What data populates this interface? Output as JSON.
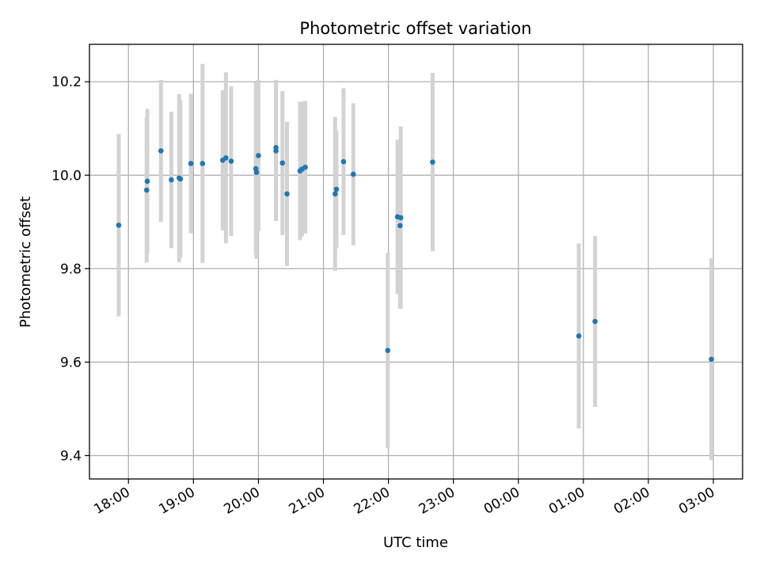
{
  "chart_data": {
    "type": "scatter",
    "title": "Photometric offset variation",
    "xlabel": "UTC time",
    "ylabel": "Photometric offset",
    "x_unit": "hours of UTC day (values above 24 are after midnight)",
    "xlim": [
      17.4,
      27.45
    ],
    "ylim": [
      9.35,
      10.28
    ],
    "x_ticks": [
      {
        "value": 18,
        "label": "18:00"
      },
      {
        "value": 19,
        "label": "19:00"
      },
      {
        "value": 20,
        "label": "20:00"
      },
      {
        "value": 21,
        "label": "21:00"
      },
      {
        "value": 22,
        "label": "22:00"
      },
      {
        "value": 23,
        "label": "23:00"
      },
      {
        "value": 24,
        "label": "00:00"
      },
      {
        "value": 25,
        "label": "01:00"
      },
      {
        "value": 26,
        "label": "02:00"
      },
      {
        "value": 27,
        "label": "03:00"
      }
    ],
    "y_ticks": [
      {
        "value": 9.4,
        "label": "9.4"
      },
      {
        "value": 9.6,
        "label": "9.6"
      },
      {
        "value": 9.8,
        "label": "9.8"
      },
      {
        "value": 10.0,
        "label": "10.0"
      },
      {
        "value": 10.2,
        "label": "10.2"
      }
    ],
    "grid": true,
    "point_color": "#1f77b4",
    "errorbar_color": "#d3d3d3",
    "series": [
      {
        "points": [
          {
            "x": 17.85,
            "y": 9.893,
            "err": 0.195
          },
          {
            "x": 18.28,
            "y": 9.968,
            "err": 0.155
          },
          {
            "x": 18.29,
            "y": 9.987,
            "err": 0.155
          },
          {
            "x": 18.5,
            "y": 10.052,
            "err": 0.152
          },
          {
            "x": 18.66,
            "y": 9.99,
            "err": 0.146
          },
          {
            "x": 18.78,
            "y": 9.994,
            "err": 0.18
          },
          {
            "x": 18.8,
            "y": 9.992,
            "err": 0.168
          },
          {
            "x": 18.96,
            "y": 10.025,
            "err": 0.149
          },
          {
            "x": 19.14,
            "y": 10.025,
            "err": 0.213
          },
          {
            "x": 19.45,
            "y": 10.032,
            "err": 0.15
          },
          {
            "x": 19.5,
            "y": 10.037,
            "err": 0.183
          },
          {
            "x": 19.58,
            "y": 10.03,
            "err": 0.16
          },
          {
            "x": 19.96,
            "y": 10.014,
            "err": 0.185
          },
          {
            "x": 19.97,
            "y": 10.006,
            "err": 0.185
          },
          {
            "x": 20.0,
            "y": 10.042,
            "err": 0.162
          },
          {
            "x": 20.27,
            "y": 10.052,
            "err": 0.15
          },
          {
            "x": 20.27,
            "y": 10.059,
            "err": 0.145
          },
          {
            "x": 20.37,
            "y": 10.026,
            "err": 0.154
          },
          {
            "x": 20.44,
            "y": 9.96,
            "err": 0.154
          },
          {
            "x": 20.64,
            "y": 10.009,
            "err": 0.148
          },
          {
            "x": 20.67,
            "y": 10.013,
            "err": 0.144
          },
          {
            "x": 20.72,
            "y": 10.017,
            "err": 0.142
          },
          {
            "x": 21.18,
            "y": 9.96,
            "err": 0.165
          },
          {
            "x": 21.2,
            "y": 9.97,
            "err": 0.126
          },
          {
            "x": 21.31,
            "y": 10.029,
            "err": 0.157
          },
          {
            "x": 21.46,
            "y": 10.002,
            "err": 0.152
          },
          {
            "x": 21.99,
            "y": 9.625,
            "err": 0.209
          },
          {
            "x": 22.14,
            "y": 9.911,
            "err": 0.165
          },
          {
            "x": 22.18,
            "y": 9.892,
            "err": 0.177
          },
          {
            "x": 22.19,
            "y": 9.909,
            "err": 0.195
          },
          {
            "x": 22.68,
            "y": 10.028,
            "err": 0.191
          },
          {
            "x": 24.93,
            "y": 9.656,
            "err": 0.198
          },
          {
            "x": 25.18,
            "y": 9.687,
            "err": 0.183
          },
          {
            "x": 26.97,
            "y": 9.606,
            "err": 0.216
          }
        ]
      }
    ]
  }
}
